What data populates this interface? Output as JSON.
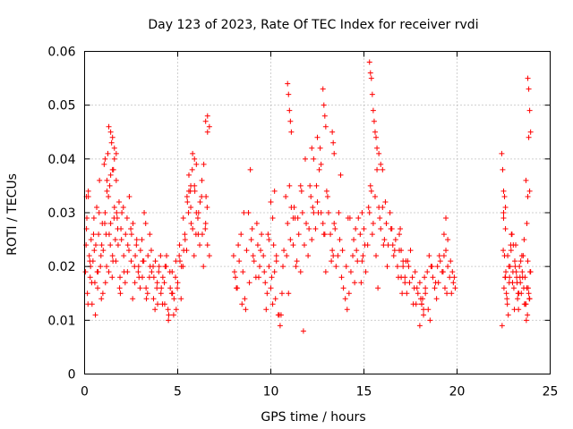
{
  "chart_data": {
    "type": "scatter",
    "title": "Day 123 of 2023, Rate Of TEC Index for receiver rvdi",
    "xlabel": "GPS time / hours",
    "ylabel": "ROTI / TECUs",
    "xlim": [
      0,
      25
    ],
    "ylim": [
      0,
      0.06
    ],
    "xticks": [
      "0",
      "5",
      "10",
      "15",
      "20",
      "25"
    ],
    "yticks": [
      "0",
      "0.01",
      "0.02",
      "0.03",
      "0.04",
      "0.05",
      "0.06"
    ],
    "grid": true,
    "marker": "plus",
    "color": "#ff0000",
    "x": [
      0.05,
      0.1,
      0.15,
      0.2,
      0.25,
      0.3,
      0.35,
      0.4,
      0.45,
      0.5,
      0.55,
      0.6,
      0.65,
      0.7,
      0.75,
      0.8,
      0.85,
      0.9,
      0.95,
      1.0,
      1.05,
      1.1,
      1.15,
      1.2,
      1.25,
      1.3,
      1.35,
      1.4,
      1.45,
      1.5,
      1.55,
      1.6,
      1.65,
      1.7,
      1.75,
      1.8,
      1.85,
      1.9,
      1.95,
      2.0,
      2.1,
      2.2,
      2.3,
      2.4,
      2.5,
      2.6,
      2.7,
      2.8,
      2.9,
      3.0,
      3.1,
      3.2,
      3.3,
      3.4,
      3.5,
      3.6,
      3.7,
      3.8,
      3.9,
      4.0,
      4.1,
      4.2,
      4.3,
      4.4,
      4.5,
      4.6,
      4.7,
      4.8,
      4.9,
      5.0,
      5.1,
      5.2,
      5.3,
      5.4,
      5.5,
      5.6,
      5.7,
      5.8,
      5.9,
      6.0,
      6.1,
      6.2,
      6.3,
      6.4,
      6.5,
      6.6,
      6.7,
      0.08,
      0.18,
      0.28,
      0.38,
      0.48,
      0.58,
      0.68,
      0.78,
      0.88,
      0.98,
      1.08,
      1.18,
      1.28,
      1.38,
      1.48,
      1.58,
      1.68,
      1.78,
      1.88,
      1.98,
      2.08,
      2.18,
      2.28,
      2.38,
      2.48,
      2.58,
      2.68,
      2.78,
      2.88,
      2.98,
      3.08,
      3.18,
      3.28,
      3.38,
      3.48,
      3.58,
      3.68,
      3.78,
      3.88,
      3.98,
      4.08,
      4.18,
      4.28,
      4.38,
      4.48,
      4.58,
      4.68,
      4.78,
      4.88,
      4.98,
      5.08,
      5.18,
      5.28,
      5.38,
      5.48,
      5.58,
      5.68,
      5.78,
      5.88,
      5.98,
      6.08,
      6.18,
      6.28,
      6.38,
      6.48,
      6.58,
      0.12,
      0.32,
      0.52,
      0.72,
      0.92,
      1.12,
      1.32,
      1.52,
      1.72,
      1.92,
      2.12,
      2.32,
      2.52,
      2.72,
      2.92,
      3.12,
      3.32,
      3.52,
      3.72,
      3.92,
      4.12,
      4.32,
      4.52,
      4.72,
      4.92,
      5.12,
      5.32,
      5.52,
      5.72,
      5.92,
      6.12,
      6.32,
      6.52,
      1.3,
      1.4,
      1.5,
      1.6,
      1.7,
      1.6,
      1.5,
      1.4,
      1.2,
      1.1,
      5.8,
      5.9,
      6.0,
      6.5,
      6.6,
      6.7,
      6.6,
      5.7,
      5.6,
      0.1,
      0.2,
      8.0,
      8.1,
      8.2,
      8.3,
      8.4,
      8.5,
      8.6,
      8.7,
      8.8,
      8.9,
      9.0,
      9.1,
      9.2,
      9.3,
      9.4,
      9.5,
      9.6,
      9.7,
      9.8,
      9.9,
      10.0,
      10.1,
      10.2,
      10.3,
      10.4,
      10.5,
      10.6,
      10.7,
      10.8,
      10.9,
      11.0,
      11.1,
      11.2,
      11.3,
      11.4,
      11.5,
      11.6,
      11.7,
      11.8,
      11.9,
      12.0,
      12.1,
      12.2,
      12.3,
      12.4,
      12.5,
      12.6,
      12.7,
      12.8,
      12.9,
      13.0,
      13.1,
      13.2,
      13.3,
      13.4,
      13.5,
      13.6,
      13.7,
      13.8,
      13.9,
      14.0,
      14.1,
      14.2,
      14.3,
      14.4,
      14.5,
      14.6,
      14.7,
      14.8,
      14.9,
      15.0,
      15.1,
      15.2,
      15.3,
      15.4,
      15.5,
      15.6,
      15.7,
      15.8,
      15.9,
      16.0,
      16.1,
      16.2,
      16.3,
      16.4,
      16.5,
      16.6,
      16.7,
      16.8,
      16.9,
      17.0,
      17.1,
      17.2,
      17.3,
      17.4,
      17.5,
      17.6,
      17.7,
      17.8,
      17.9,
      18.0,
      18.1,
      18.2,
      18.3,
      18.4,
      18.5,
      18.6,
      18.7,
      18.8,
      18.9,
      19.0,
      19.1,
      19.2,
      19.3,
      19.4,
      19.5,
      19.6,
      19.7,
      19.8,
      19.9,
      8.05,
      8.25,
      8.45,
      8.65,
      8.85,
      9.05,
      9.25,
      9.45,
      9.65,
      9.85,
      10.05,
      10.25,
      10.45,
      10.65,
      10.85,
      11.05,
      11.25,
      11.45,
      11.65,
      11.85,
      12.05,
      12.25,
      12.45,
      12.65,
      12.85,
      13.05,
      13.25,
      13.45,
      13.65,
      13.85,
      14.05,
      14.25,
      14.45,
      14.65,
      14.85,
      15.05,
      15.25,
      15.45,
      15.65,
      15.85,
      16.05,
      16.25,
      16.45,
      16.65,
      16.85,
      17.05,
      17.25,
      17.45,
      17.65,
      17.85,
      18.05,
      18.25,
      18.45,
      18.65,
      18.85,
      19.05,
      19.25,
      19.45,
      19.65,
      19.85,
      8.15,
      8.55,
      8.95,
      9.35,
      9.75,
      10.15,
      10.55,
      10.95,
      11.35,
      11.75,
      12.15,
      12.55,
      12.95,
      13.35,
      13.75,
      14.15,
      14.55,
      14.95,
      15.35,
      15.75,
      16.15,
      16.55,
      16.95,
      17.35,
      17.75,
      18.15,
      18.55,
      18.95,
      19.35,
      19.75,
      10.9,
      10.95,
      11.0,
      11.05,
      11.1,
      12.8,
      12.85,
      12.9,
      12.95,
      13.3,
      13.35,
      13.4,
      15.3,
      15.35,
      15.4,
      15.45,
      15.5,
      15.55,
      15.6,
      15.65,
      15.7,
      15.8,
      15.9,
      16.0,
      12.2,
      12.3,
      12.5,
      12.7,
      9.9,
      10.0,
      10.1,
      10.2,
      10.3,
      18.0,
      18.1,
      18.2,
      18.3,
      11.2,
      11.6,
      14.9,
      15.0,
      16.9,
      17.0,
      17.1,
      17.2,
      19.3,
      19.4,
      19.5,
      22.4,
      22.45,
      22.5,
      22.55,
      22.6,
      22.65,
      22.7,
      22.75,
      22.8,
      22.85,
      22.9,
      22.95,
      23.0,
      23.05,
      23.1,
      23.15,
      23.2,
      23.25,
      23.3,
      23.35,
      23.4,
      23.45,
      23.5,
      23.55,
      23.6,
      23.65,
      23.7,
      23.75,
      23.8,
      23.85,
      23.9,
      23.95,
      22.42,
      22.52,
      22.62,
      22.72,
      22.82,
      22.92,
      23.02,
      23.12,
      23.22,
      23.32,
      23.42,
      23.52,
      23.62,
      23.72,
      23.82,
      23.92,
      22.48,
      22.58,
      22.68,
      22.78,
      22.88,
      22.98,
      23.08,
      23.18,
      23.28,
      23.38,
      23.48,
      23.58,
      23.68,
      23.78,
      23.88,
      23.8,
      23.85,
      23.9,
      23.95,
      23.85,
      23.9,
      23.8,
      23.7,
      23.75,
      22.5,
      22.55,
      22.6,
      22.5,
      22.6
    ],
    "y": [
      0.019,
      0.027,
      0.015,
      0.033,
      0.022,
      0.018,
      0.025,
      0.013,
      0.021,
      0.029,
      0.017,
      0.024,
      0.031,
      0.016,
      0.026,
      0.036,
      0.02,
      0.014,
      0.028,
      0.023,
      0.039,
      0.03,
      0.026,
      0.034,
      0.041,
      0.019,
      0.035,
      0.028,
      0.043,
      0.022,
      0.038,
      0.031,
      0.025,
      0.036,
      0.029,
      0.024,
      0.032,
      0.018,
      0.027,
      0.03,
      0.022,
      0.026,
      0.019,
      0.033,
      0.021,
      0.028,
      0.017,
      0.025,
      0.02,
      0.023,
      0.018,
      0.03,
      0.016,
      0.022,
      0.026,
      0.019,
      0.014,
      0.021,
      0.017,
      0.02,
      0.015,
      0.018,
      0.013,
      0.022,
      0.01,
      0.016,
      0.019,
      0.014,
      0.021,
      0.017,
      0.024,
      0.02,
      0.029,
      0.025,
      0.033,
      0.037,
      0.031,
      0.027,
      0.035,
      0.03,
      0.026,
      0.032,
      0.036,
      0.039,
      0.028,
      0.024,
      0.022,
      0.024,
      0.013,
      0.021,
      0.017,
      0.026,
      0.011,
      0.019,
      0.03,
      0.022,
      0.015,
      0.028,
      0.02,
      0.033,
      0.024,
      0.018,
      0.029,
      0.021,
      0.027,
      0.016,
      0.025,
      0.031,
      0.017,
      0.029,
      0.023,
      0.027,
      0.014,
      0.02,
      0.024,
      0.019,
      0.016,
      0.025,
      0.021,
      0.028,
      0.015,
      0.018,
      0.023,
      0.02,
      0.012,
      0.016,
      0.019,
      0.022,
      0.013,
      0.017,
      0.02,
      0.012,
      0.019,
      0.015,
      0.011,
      0.018,
      0.016,
      0.022,
      0.014,
      0.02,
      0.026,
      0.023,
      0.03,
      0.034,
      0.038,
      0.022,
      0.026,
      0.029,
      0.024,
      0.033,
      0.02,
      0.027,
      0.031,
      0.029,
      0.02,
      0.023,
      0.019,
      0.024,
      0.017,
      0.026,
      0.021,
      0.03,
      0.015,
      0.019,
      0.024,
      0.026,
      0.022,
      0.018,
      0.021,
      0.014,
      0.02,
      0.018,
      0.013,
      0.016,
      0.02,
      0.011,
      0.015,
      0.012,
      0.021,
      0.023,
      0.032,
      0.028,
      0.034,
      0.03,
      0.026,
      0.033,
      0.046,
      0.045,
      0.044,
      0.042,
      0.041,
      0.04,
      0.038,
      0.037,
      0.036,
      0.04,
      0.041,
      0.04,
      0.039,
      0.047,
      0.048,
      0.046,
      0.045,
      0.035,
      0.034,
      0.033,
      0.034,
      0.022,
      0.018,
      0.016,
      0.021,
      0.026,
      0.019,
      0.014,
      0.023,
      0.03,
      0.038,
      0.027,
      0.021,
      0.018,
      0.024,
      0.02,
      0.026,
      0.022,
      0.017,
      0.015,
      0.02,
      0.016,
      0.013,
      0.019,
      0.022,
      0.011,
      0.009,
      0.015,
      0.023,
      0.033,
      0.028,
      0.035,
      0.031,
      0.024,
      0.029,
      0.021,
      0.026,
      0.019,
      0.03,
      0.024,
      0.028,
      0.022,
      0.035,
      0.025,
      0.03,
      0.027,
      0.032,
      0.038,
      0.03,
      0.028,
      0.026,
      0.034,
      0.03,
      0.026,
      0.023,
      0.028,
      0.02,
      0.022,
      0.025,
      0.018,
      0.016,
      0.014,
      0.012,
      0.015,
      0.019,
      0.022,
      0.017,
      0.023,
      0.029,
      0.026,
      0.021,
      0.027,
      0.019,
      0.024,
      0.03,
      0.034,
      0.028,
      0.033,
      0.038,
      0.031,
      0.027,
      0.031,
      0.025,
      0.028,
      0.024,
      0.03,
      0.027,
      0.022,
      0.025,
      0.02,
      0.023,
      0.018,
      0.021,
      0.017,
      0.015,
      0.02,
      0.023,
      0.018,
      0.016,
      0.013,
      0.015,
      0.017,
      0.013,
      0.012,
      0.015,
      0.019,
      0.022,
      0.02,
      0.018,
      0.016,
      0.014,
      0.017,
      0.021,
      0.019,
      0.026,
      0.023,
      0.02,
      0.018,
      0.015,
      0.017,
      0.016,
      0.019,
      0.024,
      0.013,
      0.012,
      0.017,
      0.022,
      0.028,
      0.023,
      0.019,
      0.026,
      0.018,
      0.014,
      0.011,
      0.02,
      0.022,
      0.025,
      0.031,
      0.029,
      0.034,
      0.04,
      0.027,
      0.031,
      0.035,
      0.042,
      0.026,
      0.033,
      0.021,
      0.027,
      0.03,
      0.023,
      0.02,
      0.029,
      0.025,
      0.021,
      0.017,
      0.024,
      0.031,
      0.026,
      0.022,
      0.029,
      0.024,
      0.02,
      0.027,
      0.023,
      0.018,
      0.015,
      0.021,
      0.017,
      0.013,
      0.016,
      0.014,
      0.018,
      0.012,
      0.02,
      0.017,
      0.022,
      0.019,
      0.015,
      0.021,
      0.018,
      0.016,
      0.03,
      0.025,
      0.018,
      0.012,
      0.024,
      0.011,
      0.015,
      0.02,
      0.008,
      0.033,
      0.03,
      0.019,
      0.022,
      0.037,
      0.029,
      0.027,
      0.022,
      0.035,
      0.016,
      0.032,
      0.024,
      0.027,
      0.021,
      0.019,
      0.014,
      0.01,
      0.02,
      0.016,
      0.019,
      0.054,
      0.052,
      0.049,
      0.047,
      0.045,
      0.053,
      0.05,
      0.048,
      0.046,
      0.045,
      0.043,
      0.041,
      0.058,
      0.056,
      0.055,
      0.052,
      0.049,
      0.047,
      0.045,
      0.044,
      0.042,
      0.041,
      0.039,
      0.038,
      0.042,
      0.04,
      0.044,
      0.039,
      0.025,
      0.032,
      0.029,
      0.034,
      0.021,
      0.009,
      0.013,
      0.011,
      0.016,
      0.029,
      0.035,
      0.03,
      0.027,
      0.026,
      0.023,
      0.02,
      0.018,
      0.022,
      0.029,
      0.025,
      0.041,
      0.038,
      0.03,
      0.022,
      0.018,
      0.015,
      0.013,
      0.011,
      0.017,
      0.02,
      0.023,
      0.026,
      0.019,
      0.016,
      0.021,
      0.024,
      0.018,
      0.014,
      0.012,
      0.02,
      0.017,
      0.015,
      0.019,
      0.022,
      0.025,
      0.018,
      0.013,
      0.016,
      0.021,
      0.015,
      0.014,
      0.019,
      0.009,
      0.016,
      0.019,
      0.022,
      0.018,
      0.026,
      0.024,
      0.02,
      0.017,
      0.015,
      0.021,
      0.018,
      0.013,
      0.01,
      0.016,
      0.019,
      0.023,
      0.018,
      0.014,
      0.02,
      0.024,
      0.017,
      0.012,
      0.019,
      0.015,
      0.018,
      0.022,
      0.016,
      0.013,
      0.011,
      0.014,
      0.055,
      0.053,
      0.049,
      0.045,
      0.044,
      0.034,
      0.033,
      0.036,
      0.028,
      0.034,
      0.033,
      0.031,
      0.029,
      0.027
    ]
  }
}
